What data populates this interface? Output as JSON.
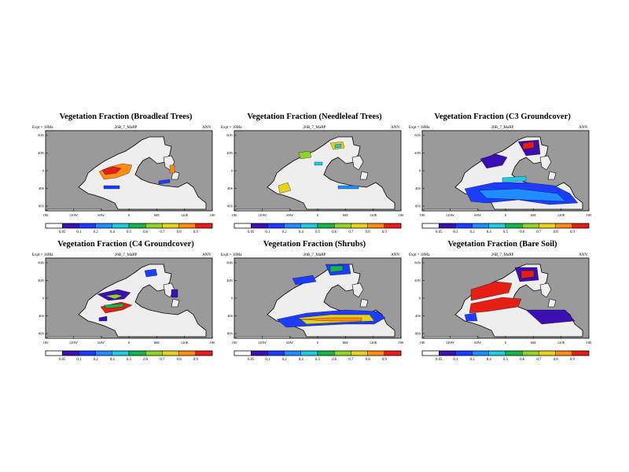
{
  "common": {
    "subtitle_left": "Expt = 18Ma",
    "subtitle_center": "26B_7_MaRP",
    "subtitle_right": "ANN",
    "lon_ticks": [
      "180",
      "120W",
      "60W",
      "0",
      "60E",
      "120E",
      "180"
    ],
    "lat_ticks": [
      "80N",
      "40N",
      "0",
      "40S",
      "80S"
    ],
    "colorbar_labels": [
      "0.05",
      "0.1",
      "0.2",
      "0.4",
      "0.5",
      "0.6",
      "0.7",
      "0.8",
      "0.9"
    ],
    "colorbar_colors": [
      "#ffffff",
      "#3b0fb2",
      "#1c3cff",
      "#1f8cff",
      "#22c8e6",
      "#18b44a",
      "#8fd22a",
      "#e6d21e",
      "#ff8c14",
      "#e61e14"
    ],
    "ocean_color": "#9a9a9a",
    "land_color": "#eeeeee"
  },
  "panels": [
    {
      "title": "Vegetation Fraction (Broadleaf Trees)"
    },
    {
      "title": "Vegetation Fraction (Needleleaf Trees)"
    },
    {
      "title": "Vegetation Fraction (C3 Groundcover)"
    },
    {
      "title": "Vegetation Fraction (C4 Groundcover)"
    },
    {
      "title": "Vegetation Fraction (Shrubs)"
    },
    {
      "title": "Vegetation Fraction (Bare Soil)"
    }
  ]
}
